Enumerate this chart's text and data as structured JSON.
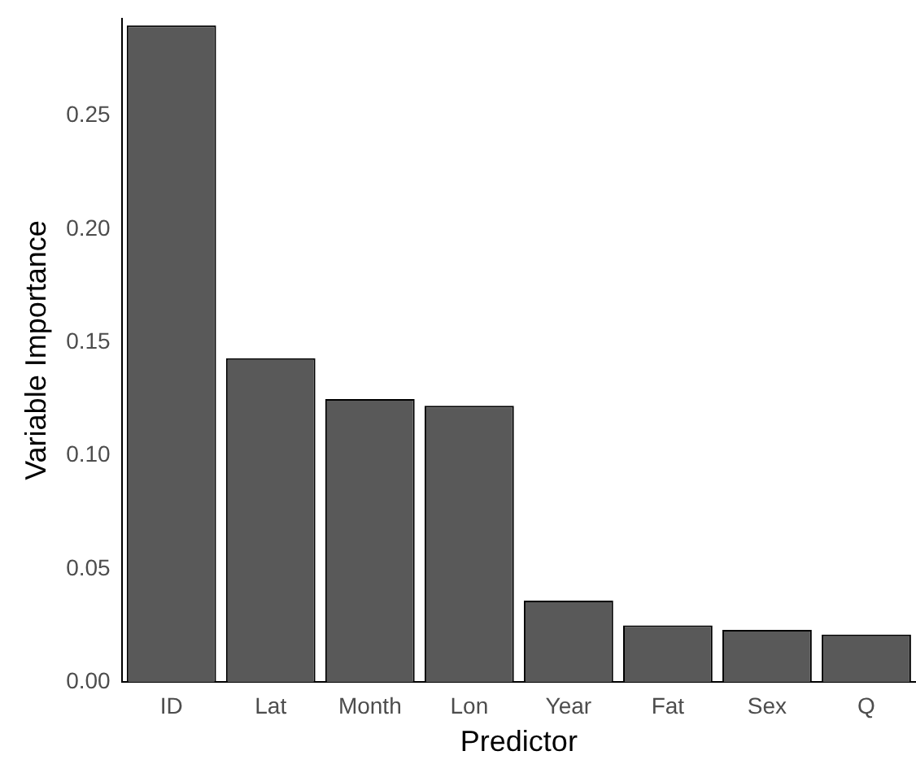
{
  "chart_data": {
    "type": "bar",
    "xlabel": "Predictor",
    "ylabel": "Variable Importance",
    "categories": [
      "ID",
      "Lat",
      "Month",
      "Lon",
      "Year",
      "Fat",
      "Sex",
      "Q"
    ],
    "values": [
      0.29,
      0.143,
      0.125,
      0.122,
      0.036,
      0.025,
      0.023,
      0.021
    ],
    "color": "#595959",
    "ylim": [
      0,
      0.293
    ],
    "yticks": [
      {
        "value": 0,
        "label": "0.00"
      },
      {
        "value": 0.05,
        "label": "0.05"
      },
      {
        "value": 0.1,
        "label": "0.10"
      },
      {
        "value": 0.15,
        "label": "0.15"
      },
      {
        "value": 0.2,
        "label": "0.20"
      },
      {
        "value": 0.25,
        "label": "0.25"
      }
    ]
  }
}
